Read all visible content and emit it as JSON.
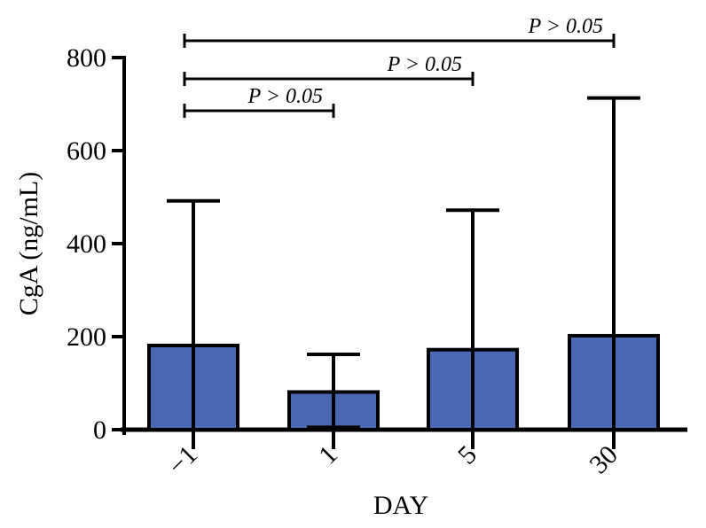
{
  "chart_data": {
    "type": "bar",
    "title": "",
    "xlabel": "DAY",
    "ylabel": "CgA (ng/mL)",
    "categories": [
      "−1",
      "1",
      "5",
      "30"
    ],
    "values": [
      181,
      81,
      172,
      202
    ],
    "error_upper": [
      492,
      162,
      472,
      713
    ],
    "error_lower": [
      null,
      5,
      null,
      null
    ],
    "ylim": [
      0,
      800
    ],
    "yticks": [
      "0",
      "200",
      "400",
      "600",
      "800"
    ],
    "grid": false,
    "bar_color": "#4a69b5",
    "comparisons": [
      {
        "from": "−1",
        "to": "1",
        "label": "P > 0.05"
      },
      {
        "from": "−1",
        "to": "5",
        "label": "P > 0.05"
      },
      {
        "from": "−1",
        "to": "30",
        "label": "P > 0.05"
      }
    ]
  }
}
